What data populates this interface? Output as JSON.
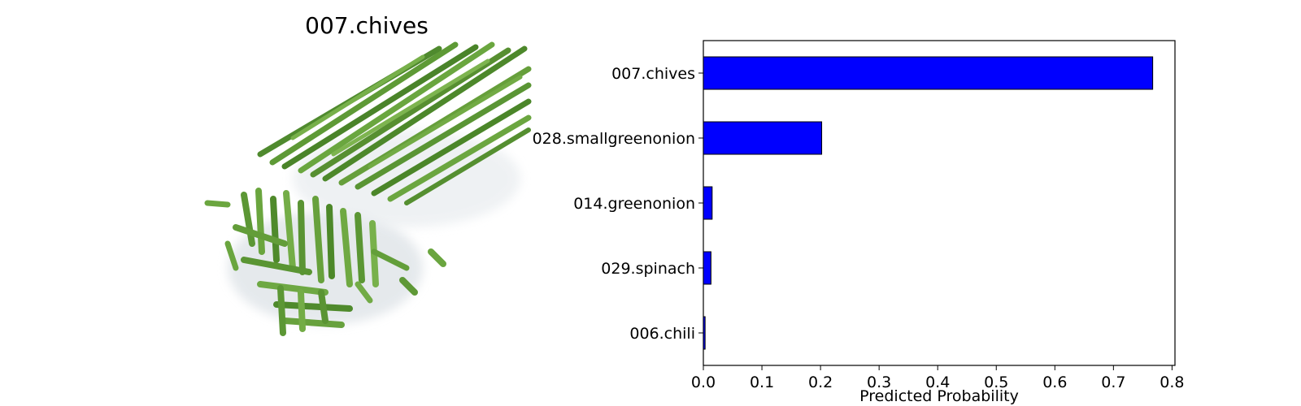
{
  "image_panel": {
    "title": "007.chives",
    "photo_subject": "chopped chives"
  },
  "chart_data": {
    "type": "bar",
    "orientation": "horizontal",
    "categories": [
      "007.chives",
      "028.smallgreenonion",
      "014.greenonion",
      "029.spinach",
      "006.chili"
    ],
    "values": [
      0.767,
      0.202,
      0.015,
      0.013,
      0.003
    ],
    "xlabel": "Predicted Probability",
    "ylabel": "",
    "xlim": [
      0,
      0.805
    ],
    "xticks": [
      "0.0",
      "0.1",
      "0.2",
      "0.3",
      "0.4",
      "0.5",
      "0.6",
      "0.7",
      "0.8"
    ],
    "bar_color": "#0000ff",
    "bar_edge_color": "#000000",
    "grid": false,
    "legend": "none"
  }
}
